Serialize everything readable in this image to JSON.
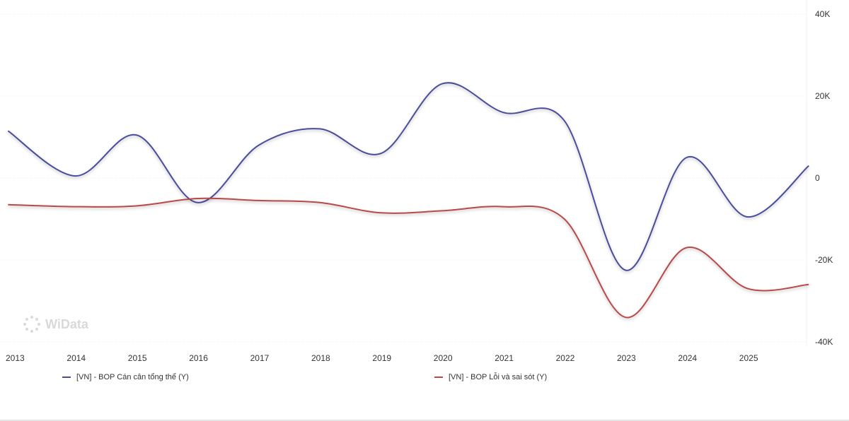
{
  "chart_data": {
    "type": "line",
    "x": [
      "2013",
      "2014",
      "2015",
      "2016",
      "2017",
      "2018",
      "2019",
      "2020",
      "2021",
      "2022",
      "2023",
      "2024",
      "2025"
    ],
    "x_tick_labels": [
      "2013",
      "2014",
      "2015",
      "2016",
      "2017",
      "2018",
      "2019",
      "2020",
      "2021",
      "2022",
      "2023",
      "2024",
      "2025"
    ],
    "y_tick_labels": [
      "40K",
      "20K",
      "0",
      "-20K",
      "-40K"
    ],
    "ylim": [
      -40000,
      40000
    ],
    "y_axis_position": "right",
    "grid": "horizontal",
    "legend_position": "bottom",
    "series": [
      {
        "name": "[VN] - BOP Cán cân tổng thể (Y)",
        "color": "#4a4e9a",
        "points": [
          [
            2012.9,
            11500
          ],
          [
            2014.0,
            500
          ],
          [
            2015.0,
            10500
          ],
          [
            2016.0,
            -6000
          ],
          [
            2017.0,
            8000
          ],
          [
            2018.0,
            12000
          ],
          [
            2019.0,
            6000
          ],
          [
            2020.0,
            23000
          ],
          [
            2021.0,
            16000
          ],
          [
            2022.0,
            14000
          ],
          [
            2023.0,
            -22500
          ],
          [
            2024.0,
            5000
          ],
          [
            2025.0,
            -9500
          ],
          [
            2026.0,
            3000
          ]
        ]
      },
      {
        "name": "[VN] - BOP Lỗi và sai sót (Y)",
        "color": "#b94a4a",
        "points": [
          [
            2012.9,
            -6500
          ],
          [
            2014.0,
            -7000
          ],
          [
            2015.0,
            -6800
          ],
          [
            2016.0,
            -5000
          ],
          [
            2017.0,
            -5500
          ],
          [
            2018.0,
            -6000
          ],
          [
            2019.0,
            -8500
          ],
          [
            2020.0,
            -8000
          ],
          [
            2021.0,
            -7000
          ],
          [
            2022.0,
            -10000
          ],
          [
            2023.0,
            -34000
          ],
          [
            2024.0,
            -17000
          ],
          [
            2025.0,
            -27000
          ],
          [
            2026.0,
            -26000
          ]
        ]
      }
    ]
  },
  "legend": {
    "items": [
      {
        "label": "[VN] - BOP Cán cân tổng thể (Y)",
        "color": "#4a4e9a"
      },
      {
        "label": "[VN] - BOP Lỗi và sai sót (Y)",
        "color": "#b94a4a"
      }
    ]
  },
  "watermark": {
    "text": "WiData",
    "icon": "widata-logo-icon"
  }
}
